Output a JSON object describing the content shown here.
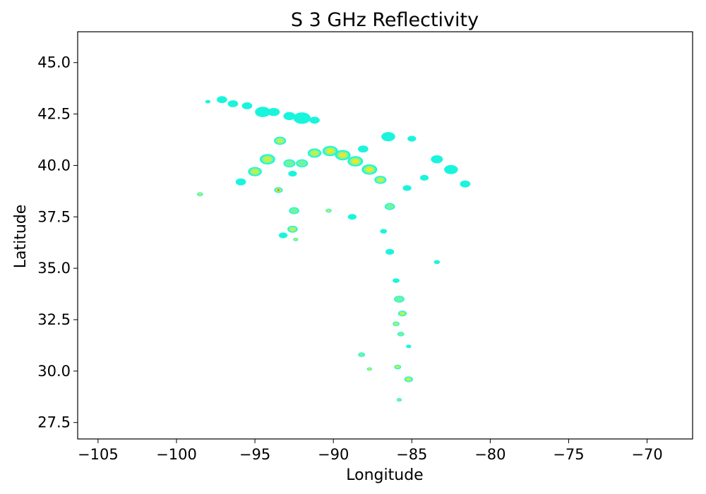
{
  "chart_data": {
    "type": "heatmap",
    "title": "S 3 GHz Reflectivity",
    "xlabel": "Longitude",
    "ylabel": "Latitude",
    "xlim": [
      -106.3,
      -67.1
    ],
    "ylim": [
      26.7,
      46.5
    ],
    "xticks": [
      -105,
      -100,
      -95,
      -90,
      -85,
      -80,
      -75,
      -70
    ],
    "xtick_labels": [
      "−105",
      "−100",
      "−95",
      "−90",
      "−85",
      "−80",
      "−75",
      "−70"
    ],
    "yticks": [
      27.5,
      30.0,
      32.5,
      35.0,
      37.5,
      40.0,
      42.5,
      45.0
    ],
    "ytick_labels": [
      "27.5",
      "30.0",
      "32.5",
      "35.0",
      "37.5",
      "40.0",
      "42.5",
      "45.0"
    ],
    "grid": false,
    "colors": {
      "low": "#19f5dc",
      "mid_low": "#6ff5a0",
      "mid": "#bdf050",
      "high": "#f5e61e",
      "peak": "#f07818"
    },
    "cells": [
      {
        "lon": -98.0,
        "lat": 43.1,
        "level": "low",
        "size": 0.3
      },
      {
        "lon": -97.1,
        "lat": 43.2,
        "level": "low",
        "size": 0.6
      },
      {
        "lon": -96.4,
        "lat": 43.0,
        "level": "low",
        "size": 0.6
      },
      {
        "lon": -95.5,
        "lat": 42.9,
        "level": "low",
        "size": 0.6
      },
      {
        "lon": -94.5,
        "lat": 42.6,
        "level": "low",
        "size": 0.9
      },
      {
        "lon": -93.8,
        "lat": 42.6,
        "level": "low",
        "size": 0.7
      },
      {
        "lon": -92.8,
        "lat": 42.4,
        "level": "low",
        "size": 0.7
      },
      {
        "lon": -92.0,
        "lat": 42.3,
        "level": "low",
        "size": 1.0
      },
      {
        "lon": -91.2,
        "lat": 42.2,
        "level": "low",
        "size": 0.6
      },
      {
        "lon": -93.4,
        "lat": 41.2,
        "level": "mid",
        "size": 0.7
      },
      {
        "lon": -94.2,
        "lat": 40.3,
        "level": "mid",
        "size": 0.9
      },
      {
        "lon": -95.0,
        "lat": 39.7,
        "level": "mid",
        "size": 0.8
      },
      {
        "lon": -95.9,
        "lat": 39.2,
        "level": "low",
        "size": 0.6
      },
      {
        "lon": -92.8,
        "lat": 40.1,
        "level": "mid_low",
        "size": 0.7
      },
      {
        "lon": -92.0,
        "lat": 40.1,
        "level": "mid_low",
        "size": 0.7
      },
      {
        "lon": -92.6,
        "lat": 39.6,
        "level": "low",
        "size": 0.5
      },
      {
        "lon": -91.2,
        "lat": 40.6,
        "level": "mid",
        "size": 0.8
      },
      {
        "lon": -90.2,
        "lat": 40.7,
        "level": "high",
        "size": 0.9
      },
      {
        "lon": -89.4,
        "lat": 40.5,
        "level": "high",
        "size": 0.9
      },
      {
        "lon": -88.6,
        "lat": 40.2,
        "level": "high",
        "size": 0.9
      },
      {
        "lon": -87.7,
        "lat": 39.8,
        "level": "high",
        "size": 0.9
      },
      {
        "lon": -87.0,
        "lat": 39.3,
        "level": "mid",
        "size": 0.7
      },
      {
        "lon": -88.1,
        "lat": 40.8,
        "level": "low",
        "size": 0.6
      },
      {
        "lon": -86.5,
        "lat": 41.4,
        "level": "low",
        "size": 0.8
      },
      {
        "lon": -85.0,
        "lat": 41.3,
        "level": "low",
        "size": 0.5
      },
      {
        "lon": -83.4,
        "lat": 40.3,
        "level": "low",
        "size": 0.7
      },
      {
        "lon": -82.5,
        "lat": 39.8,
        "level": "low",
        "size": 0.8
      },
      {
        "lon": -81.6,
        "lat": 39.1,
        "level": "low",
        "size": 0.6
      },
      {
        "lon": -84.2,
        "lat": 39.4,
        "level": "low",
        "size": 0.5
      },
      {
        "lon": -85.3,
        "lat": 38.9,
        "level": "low",
        "size": 0.5
      },
      {
        "lon": -98.5,
        "lat": 38.6,
        "level": "mid",
        "size": 0.35
      },
      {
        "lon": -93.5,
        "lat": 38.8,
        "level": "peak",
        "size": 0.5
      },
      {
        "lon": -92.5,
        "lat": 37.8,
        "level": "mid_low",
        "size": 0.6
      },
      {
        "lon": -92.6,
        "lat": 36.9,
        "level": "mid",
        "size": 0.6
      },
      {
        "lon": -93.2,
        "lat": 36.6,
        "level": "low",
        "size": 0.5
      },
      {
        "lon": -92.4,
        "lat": 36.4,
        "level": "mid",
        "size": 0.3
      },
      {
        "lon": -90.3,
        "lat": 37.8,
        "level": "mid",
        "size": 0.35
      },
      {
        "lon": -88.8,
        "lat": 37.5,
        "level": "low",
        "size": 0.5
      },
      {
        "lon": -86.4,
        "lat": 38.0,
        "level": "mid_low",
        "size": 0.6
      },
      {
        "lon": -86.8,
        "lat": 36.8,
        "level": "low",
        "size": 0.4
      },
      {
        "lon": -86.4,
        "lat": 35.8,
        "level": "low",
        "size": 0.5
      },
      {
        "lon": -83.4,
        "lat": 35.3,
        "level": "low",
        "size": 0.35
      },
      {
        "lon": -86.0,
        "lat": 34.4,
        "level": "low",
        "size": 0.4
      },
      {
        "lon": -85.8,
        "lat": 33.5,
        "level": "mid_low",
        "size": 0.6
      },
      {
        "lon": -85.6,
        "lat": 32.8,
        "level": "mid",
        "size": 0.5
      },
      {
        "lon": -86.0,
        "lat": 32.3,
        "level": "mid",
        "size": 0.4
      },
      {
        "lon": -85.7,
        "lat": 31.8,
        "level": "mid_low",
        "size": 0.4
      },
      {
        "lon": -85.2,
        "lat": 31.2,
        "level": "low",
        "size": 0.3
      },
      {
        "lon": -88.2,
        "lat": 30.8,
        "level": "mid_low",
        "size": 0.4
      },
      {
        "lon": -87.7,
        "lat": 30.1,
        "level": "mid",
        "size": 0.3
      },
      {
        "lon": -85.9,
        "lat": 30.2,
        "level": "mid",
        "size": 0.4
      },
      {
        "lon": -85.2,
        "lat": 29.6,
        "level": "mid",
        "size": 0.5
      },
      {
        "lon": -85.8,
        "lat": 28.6,
        "level": "mid_low",
        "size": 0.3
      }
    ]
  }
}
